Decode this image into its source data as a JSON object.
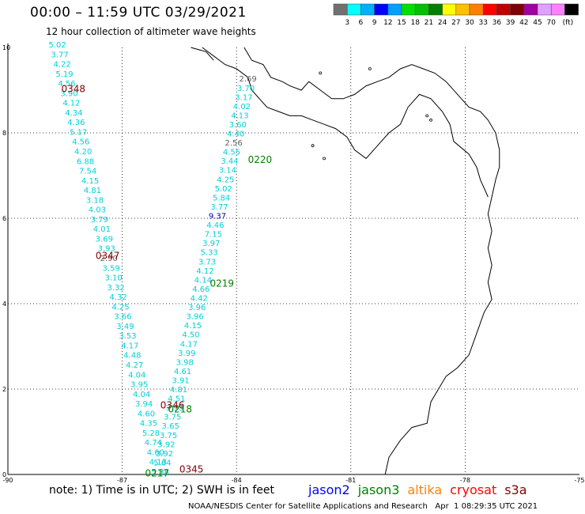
{
  "header": {
    "title": "00:00 – 11:59 UTC 03/29/2021",
    "subtitle": "12 hour collection of altimeter wave heights"
  },
  "colorbar": {
    "colors": [
      "#707070",
      "#00ffff",
      "#00b0ff",
      "#0000ff",
      "#00a0ff",
      "#00e000",
      "#00c000",
      "#008000",
      "#ffff00",
      "#ffc000",
      "#ff8000",
      "#ff0000",
      "#c00000",
      "#800000",
      "#a000a0",
      "#e0a0ff",
      "#ff80ff",
      "#000000"
    ],
    "labels": [
      "3",
      "6",
      "9",
      "12",
      "15",
      "18",
      "21",
      "24",
      "27",
      "30",
      "33",
      "36",
      "39",
      "42",
      "45",
      "70"
    ],
    "unit": "(ft)"
  },
  "axes": {
    "x_ticks": [
      "-90",
      "-87",
      "-84",
      "-81",
      "-78",
      "-75"
    ],
    "y_ticks": [
      "0",
      "2",
      "4",
      "6",
      "8",
      "10"
    ]
  },
  "passes": [
    {
      "id": "0348",
      "color": "#800000",
      "label_lon": -88.5,
      "label_lat": 8.95,
      "start": [
        -88.7,
        10.0
      ],
      "end": [
        -86.0,
        0.0
      ],
      "values": [
        "5.02",
        "3.77",
        "4.22",
        "5.19",
        "4.56",
        "3.90",
        "4.12",
        "4.34",
        "4.36",
        "5.17",
        "4.56",
        "4.20",
        "6.88",
        "7.54",
        "4.15",
        "4.81",
        "3.18",
        "4.03",
        "3.79",
        "4.01",
        "3.69",
        "3.93",
        "2.90",
        "3.59",
        "3.10",
        "3.32",
        "4.32",
        "4.25",
        "3.66",
        "3.49",
        "3.53",
        "4.17",
        "4.48",
        "4.27",
        "4.04",
        "3.95",
        "4.04",
        "3.94",
        "4.60",
        "4.35",
        "5.28",
        "4.74",
        "4.60",
        "4.13",
        "5.12"
      ]
    },
    {
      "id": "0220",
      "color": "#008000",
      "label_lon": -83.7,
      "label_lat": 7.3,
      "start": [
        -83.7,
        9.2
      ],
      "end": [
        -86.0,
        0.0
      ],
      "values": [
        "2.69",
        "3.70",
        "3.17",
        "4.02",
        "4.13",
        "3.60",
        "4.40",
        "2.56",
        "4.55",
        "3.44",
        "3.14",
        "4.25",
        "5.02",
        "5.84",
        "3.77",
        "9.37",
        "4.46",
        "7.15",
        "3.97",
        "5.33",
        "3.73",
        "4.12",
        "4.14",
        "4.66",
        "4.42",
        "3.96",
        "3.96",
        "4.15",
        "4.50",
        "4.17",
        "3.99",
        "3.98",
        "4.61",
        "3.91",
        "4.81",
        "4.51",
        "3.93",
        "3.75",
        "3.65",
        "3.75",
        "3.92",
        "3.92",
        "5.64",
        "5.38"
      ]
    }
  ],
  "pass_labels": [
    {
      "text": "0348",
      "color": "#800000",
      "lon": -88.6,
      "lat": 8.95
    },
    {
      "text": "0220",
      "color": "#008000",
      "lon": -83.7,
      "lat": 7.3
    },
    {
      "text": "0347",
      "color": "#800000",
      "lon": -87.7,
      "lat": 5.05
    },
    {
      "text": "0219",
      "color": "#008000",
      "lon": -84.7,
      "lat": 4.4
    },
    {
      "text": "0346",
      "color": "#800000",
      "lon": -86.0,
      "lat": 1.55
    },
    {
      "text": "0218",
      "color": "#008000",
      "lon": -85.8,
      "lat": 1.45
    },
    {
      "text": "0345",
      "color": "#800000",
      "lon": -85.5,
      "lat": 0.05
    },
    {
      "text": "0217",
      "color": "#008000",
      "lon": -86.4,
      "lat": -0.05
    }
  ],
  "special_values": [
    {
      "text": "9.37",
      "color": "#0000a0"
    },
    {
      "text": "2.90",
      "color": "#606060"
    },
    {
      "text": "2.56",
      "color": "#606060"
    },
    {
      "text": "2.69",
      "color": "#606060"
    }
  ],
  "note": "note: 1) Time is in UTC; 2) SWH is in feet",
  "satellites": [
    {
      "name": "jason2",
      "color": "#0000ff"
    },
    {
      "name": "jason3",
      "color": "#008000"
    },
    {
      "name": "altika",
      "color": "#ff8000"
    },
    {
      "name": "cryosat",
      "color": "#ff0000"
    },
    {
      "name": "s3a",
      "color": "#800000"
    }
  ],
  "credit": "NOAA/NESDIS Center for Satellite Applications and Research   Apr  1 08:29:35 UTC 2021"
}
